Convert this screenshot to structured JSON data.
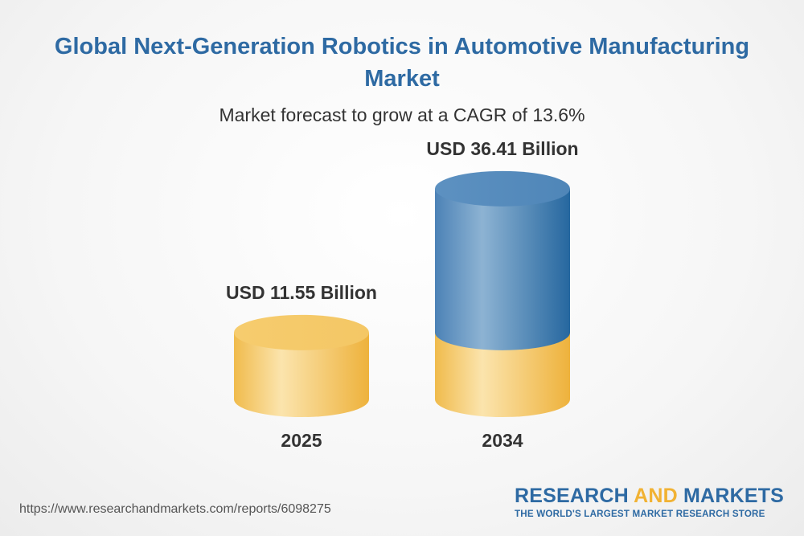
{
  "header": {
    "title": "Global Next-Generation Robotics in Automotive Manufacturing Market",
    "subtitle": "Market forecast to grow at a CAGR of 13.6%"
  },
  "chart_data": {
    "type": "bar",
    "categories": [
      "2025",
      "2034"
    ],
    "values": [
      11.55,
      36.41
    ],
    "value_labels": [
      "USD 11.55 Billion",
      "USD 36.41 Billion"
    ],
    "unit": "USD Billion",
    "colors": {
      "base_bar": "#f3c35f",
      "growth_segment": "#4f86b8"
    }
  },
  "footer": {
    "url": "https://www.researchandmarkets.com/reports/6098275",
    "logo_part1": "RESEARCH ",
    "logo_part2": "AND",
    "logo_part3": " MARKETS",
    "tagline": "THE WORLD'S LARGEST MARKET RESEARCH STORE"
  }
}
